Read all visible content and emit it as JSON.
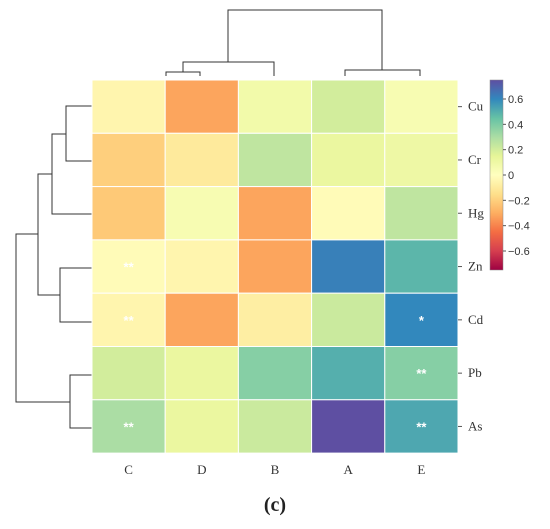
{
  "chart_data": {
    "type": "heatmap",
    "title": "",
    "xlabel": "",
    "ylabel": "",
    "columns": [
      "C",
      "D",
      "B",
      "A",
      "E"
    ],
    "rows": [
      "Cu",
      "Cr",
      "Hg",
      "Zn",
      "Cd",
      "Pb",
      "As"
    ],
    "values": [
      [
        -0.05,
        -0.32,
        0.08,
        0.2,
        0.05
      ],
      [
        -0.2,
        -0.1,
        0.25,
        0.12,
        0.1
      ],
      [
        -0.22,
        0.05,
        -0.32,
        -0.02,
        0.25
      ],
      [
        -0.02,
        -0.05,
        -0.32,
        0.62,
        0.48
      ],
      [
        -0.05,
        -0.32,
        -0.08,
        0.22,
        0.6
      ],
      [
        0.2,
        0.12,
        0.38,
        0.5,
        0.38
      ],
      [
        0.3,
        0.12,
        0.22,
        0.75,
        0.52
      ]
    ],
    "significance": [
      [
        "",
        "",
        "",
        "",
        ""
      ],
      [
        "",
        "",
        "",
        "",
        ""
      ],
      [
        "",
        "",
        "",
        "",
        ""
      ],
      [
        "**",
        "",
        "",
        "",
        ""
      ],
      [
        "**",
        "",
        "",
        "",
        "*"
      ],
      [
        "",
        "",
        "",
        "",
        "**"
      ],
      [
        "**",
        "",
        "",
        "",
        "**"
      ]
    ],
    "colorbar": {
      "min": -0.75,
      "max": 0.75,
      "ticks": [
        0.6,
        0.4,
        0.2,
        0,
        -0.2,
        -0.4,
        -0.6
      ],
      "tick_labels": [
        "0.6",
        "0.4",
        "0.2",
        "0",
        "−0.2",
        "−0.4",
        "−0.6"
      ],
      "colormap": "Spectral",
      "colors": [
        "#9e0142",
        "#d53e4f",
        "#f46d43",
        "#fdae61",
        "#fee08b",
        "#ffffbf",
        "#e6f598",
        "#abdda4",
        "#66c2a5",
        "#3288bd",
        "#5e4fa2"
      ]
    },
    "dendrograms": {
      "column_order": [
        "C",
        "D",
        "B",
        "A",
        "E"
      ],
      "row_order": [
        "Cu",
        "Cr",
        "Hg",
        "Zn",
        "Cd",
        "Pb",
        "As"
      ]
    }
  },
  "panel_label": "(c)"
}
